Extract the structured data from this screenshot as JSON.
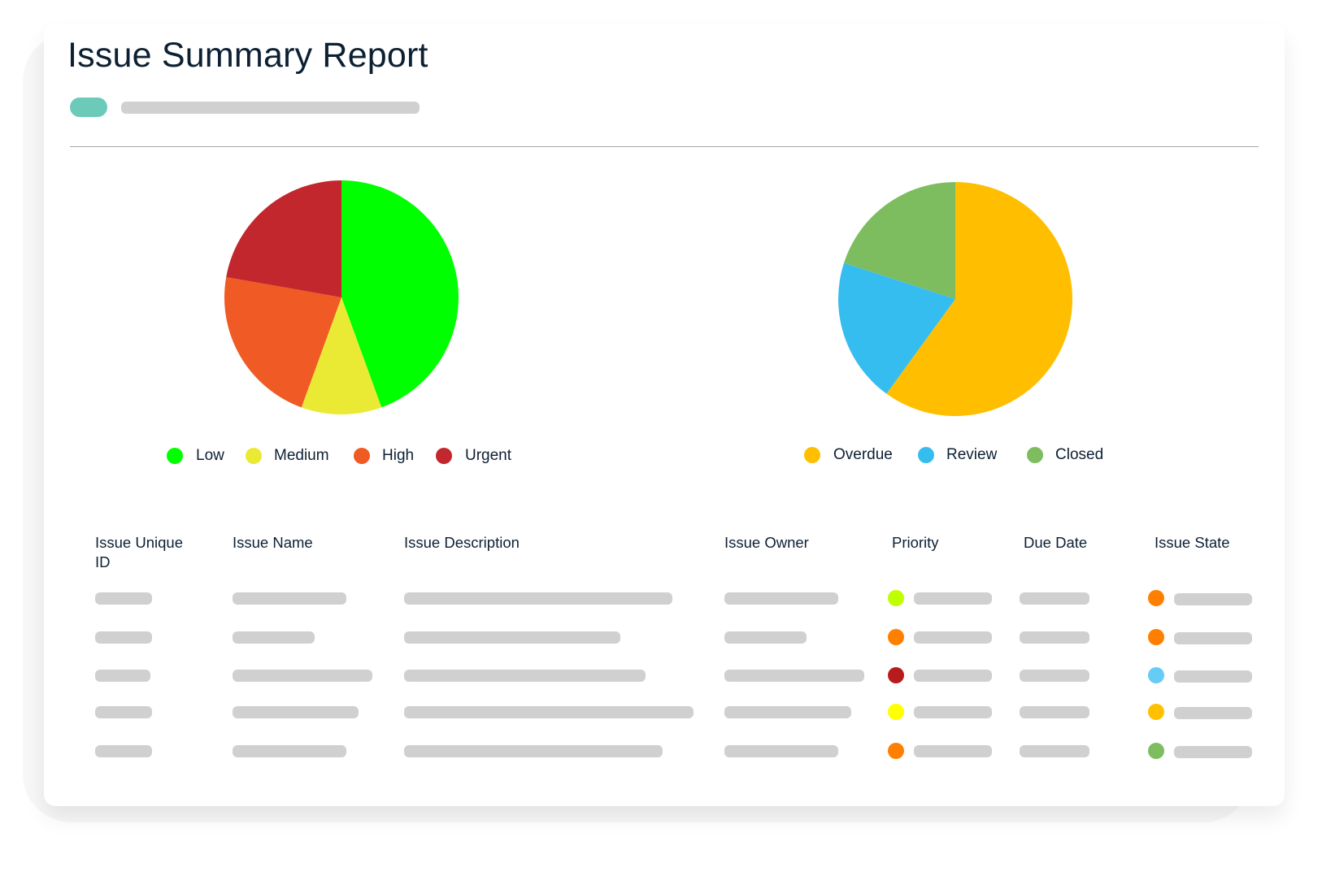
{
  "report": {
    "title": "Issue Summary Report"
  },
  "colors": {
    "accent": "#6ccab9",
    "placeholder": "#d0d0d0",
    "text": "#0d2033"
  },
  "chart_data": [
    {
      "type": "pie",
      "legend_position": "bottom",
      "categories": [
        "Low",
        "Medium",
        "High",
        "Urgent"
      ],
      "values": [
        44.4,
        11.1,
        22.2,
        22.2
      ],
      "colors": [
        "#00ff00",
        "#eaea35",
        "#f05a24",
        "#c1272d"
      ]
    },
    {
      "type": "pie",
      "legend_position": "bottom",
      "categories": [
        "Overdue",
        "Review",
        "Closed"
      ],
      "values": [
        60,
        20,
        20
      ],
      "colors": [
        "#ffbf00",
        "#36bdf0",
        "#7dbd60"
      ]
    }
  ],
  "table": {
    "headers": [
      "Issue Unique ID",
      "Issue Name",
      "Issue Description",
      "Issue Owner",
      "Priority",
      "Due Date",
      "Issue State"
    ],
    "rows": [
      {
        "priority_color": "#bfff00",
        "state_color": "#ff7f00"
      },
      {
        "priority_color": "#ff7f00",
        "state_color": "#ff7f00"
      },
      {
        "priority_color": "#b71c1c",
        "state_color": "#66ccf5"
      },
      {
        "priority_color": "#ffff00",
        "state_color": "#ffc000"
      },
      {
        "priority_color": "#ff7f00",
        "state_color": "#7dbd60"
      }
    ]
  }
}
